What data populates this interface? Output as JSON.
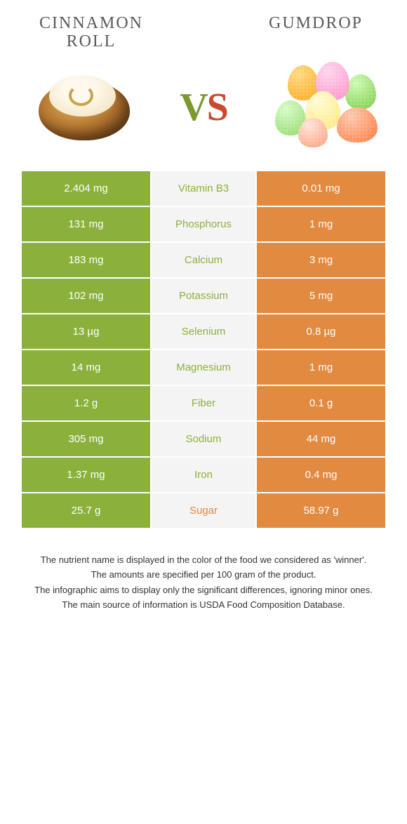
{
  "header": {
    "left_title_line1": "CINNAMON",
    "left_title_line2": "ROLL",
    "right_title": "GUMDROP",
    "vs_v": "V",
    "vs_s": "S"
  },
  "colors": {
    "left_bg": "#8bb13c",
    "right_bg": "#e28a3f",
    "mid_bg": "#f4f4f4",
    "mid_text_left": "#8bb13c",
    "mid_text_right": "#e28a3f"
  },
  "rows": [
    {
      "left": "2.404 mg",
      "label": "Vitamin B3",
      "right": "0.01 mg",
      "winner": "left"
    },
    {
      "left": "131 mg",
      "label": "Phosphorus",
      "right": "1 mg",
      "winner": "left"
    },
    {
      "left": "183 mg",
      "label": "Calcium",
      "right": "3 mg",
      "winner": "left"
    },
    {
      "left": "102 mg",
      "label": "Potassium",
      "right": "5 mg",
      "winner": "left"
    },
    {
      "left": "13 µg",
      "label": "Selenium",
      "right": "0.8 µg",
      "winner": "left"
    },
    {
      "left": "14 mg",
      "label": "Magnesium",
      "right": "1 mg",
      "winner": "left"
    },
    {
      "left": "1.2 g",
      "label": "Fiber",
      "right": "0.1 g",
      "winner": "left"
    },
    {
      "left": "305 mg",
      "label": "Sodium",
      "right": "44 mg",
      "winner": "left"
    },
    {
      "left": "1.37 mg",
      "label": "Iron",
      "right": "0.4 mg",
      "winner": "left"
    },
    {
      "left": "25.7 g",
      "label": "Sugar",
      "right": "58.97 g",
      "winner": "right"
    }
  ],
  "footer": {
    "line1": "The nutrient name is displayed in the color of the food we considered as 'winner'.",
    "line2": "The amounts are specified per 100 gram of the product.",
    "line3": "The infographic aims to display only the significant differences, ignoring minor ones.",
    "line4": "The main source of information is USDA Food Composition Database."
  }
}
